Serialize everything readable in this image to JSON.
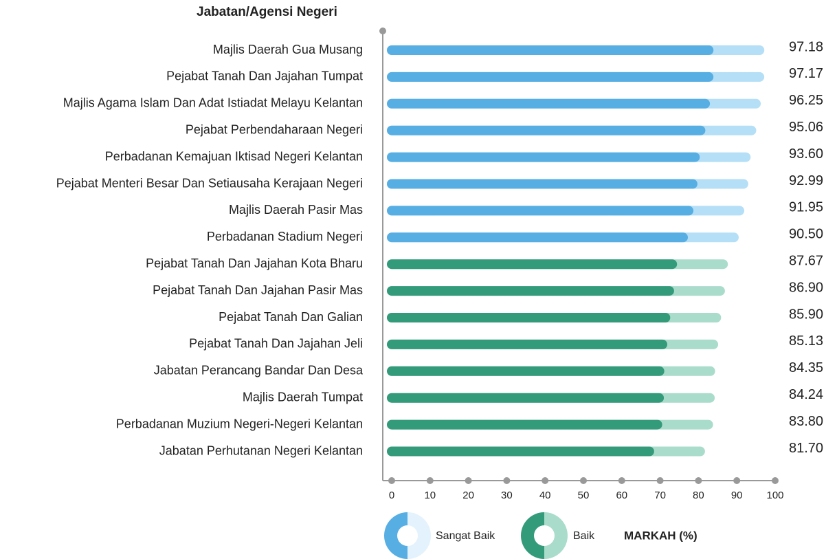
{
  "chart_data": {
    "type": "hbar",
    "title": "Jabatan/Agensi Negeri",
    "xlabel": "MARKAH (%)",
    "categories": [
      "Majlis Daerah Gua Musang",
      "Pejabat Tanah Dan Jajahan Tumpat",
      "Majlis Agama Islam Dan Adat Istiadat Melayu Kelantan",
      "Pejabat Perbendaharaan Negeri",
      "Perbadanan Kemajuan Iktisad Negeri Kelantan",
      "Pejabat Menteri Besar Dan Setiausaha Kerajaan Negeri",
      "Majlis Daerah Pasir Mas",
      "Perbadanan Stadium Negeri",
      "Pejabat Tanah Dan Jajahan Kota Bharu",
      "Pejabat Tanah Dan Jajahan Pasir Mas",
      "Pejabat Tanah Dan Galian",
      "Pejabat Tanah Dan Jajahan Jeli",
      "Jabatan Perancang Bandar Dan Desa",
      "Majlis Daerah Tumpat",
      "Perbadanan Muzium Negeri-Negeri Kelantan",
      "Jabatan Perhutanan Negeri Kelantan"
    ],
    "series": [
      {
        "name": "Sangat Baik",
        "color": "#b5dff6",
        "dark_color": "#57aee3",
        "values": [
          97.18,
          97.17,
          96.25,
          95.06,
          93.6,
          92.99,
          91.95,
          90.5,
          null,
          null,
          null,
          null,
          null,
          null,
          null,
          null
        ],
        "value_labels": [
          "97.18",
          "97.17",
          "96.25",
          "95.06",
          "93.60",
          "92.99",
          "91.95",
          "90.50",
          null,
          null,
          null,
          null,
          null,
          null,
          null,
          null
        ]
      },
      {
        "name": "Baik",
        "color": "#a9dccb",
        "dark_color": "#339a7a",
        "values": [
          null,
          null,
          null,
          null,
          null,
          null,
          null,
          null,
          87.67,
          86.9,
          85.9,
          85.13,
          84.35,
          84.24,
          83.8,
          81.7
        ],
        "value_labels": [
          null,
          null,
          null,
          null,
          null,
          null,
          null,
          null,
          "87.67",
          "86.90",
          "85.90",
          "85.13",
          "84.35",
          "84.24",
          "83.80",
          "81.70"
        ]
      }
    ],
    "xlim": [
      0,
      100
    ],
    "xticks": [
      0,
      10,
      20,
      30,
      40,
      50,
      60,
      70,
      80,
      90,
      100
    ]
  }
}
